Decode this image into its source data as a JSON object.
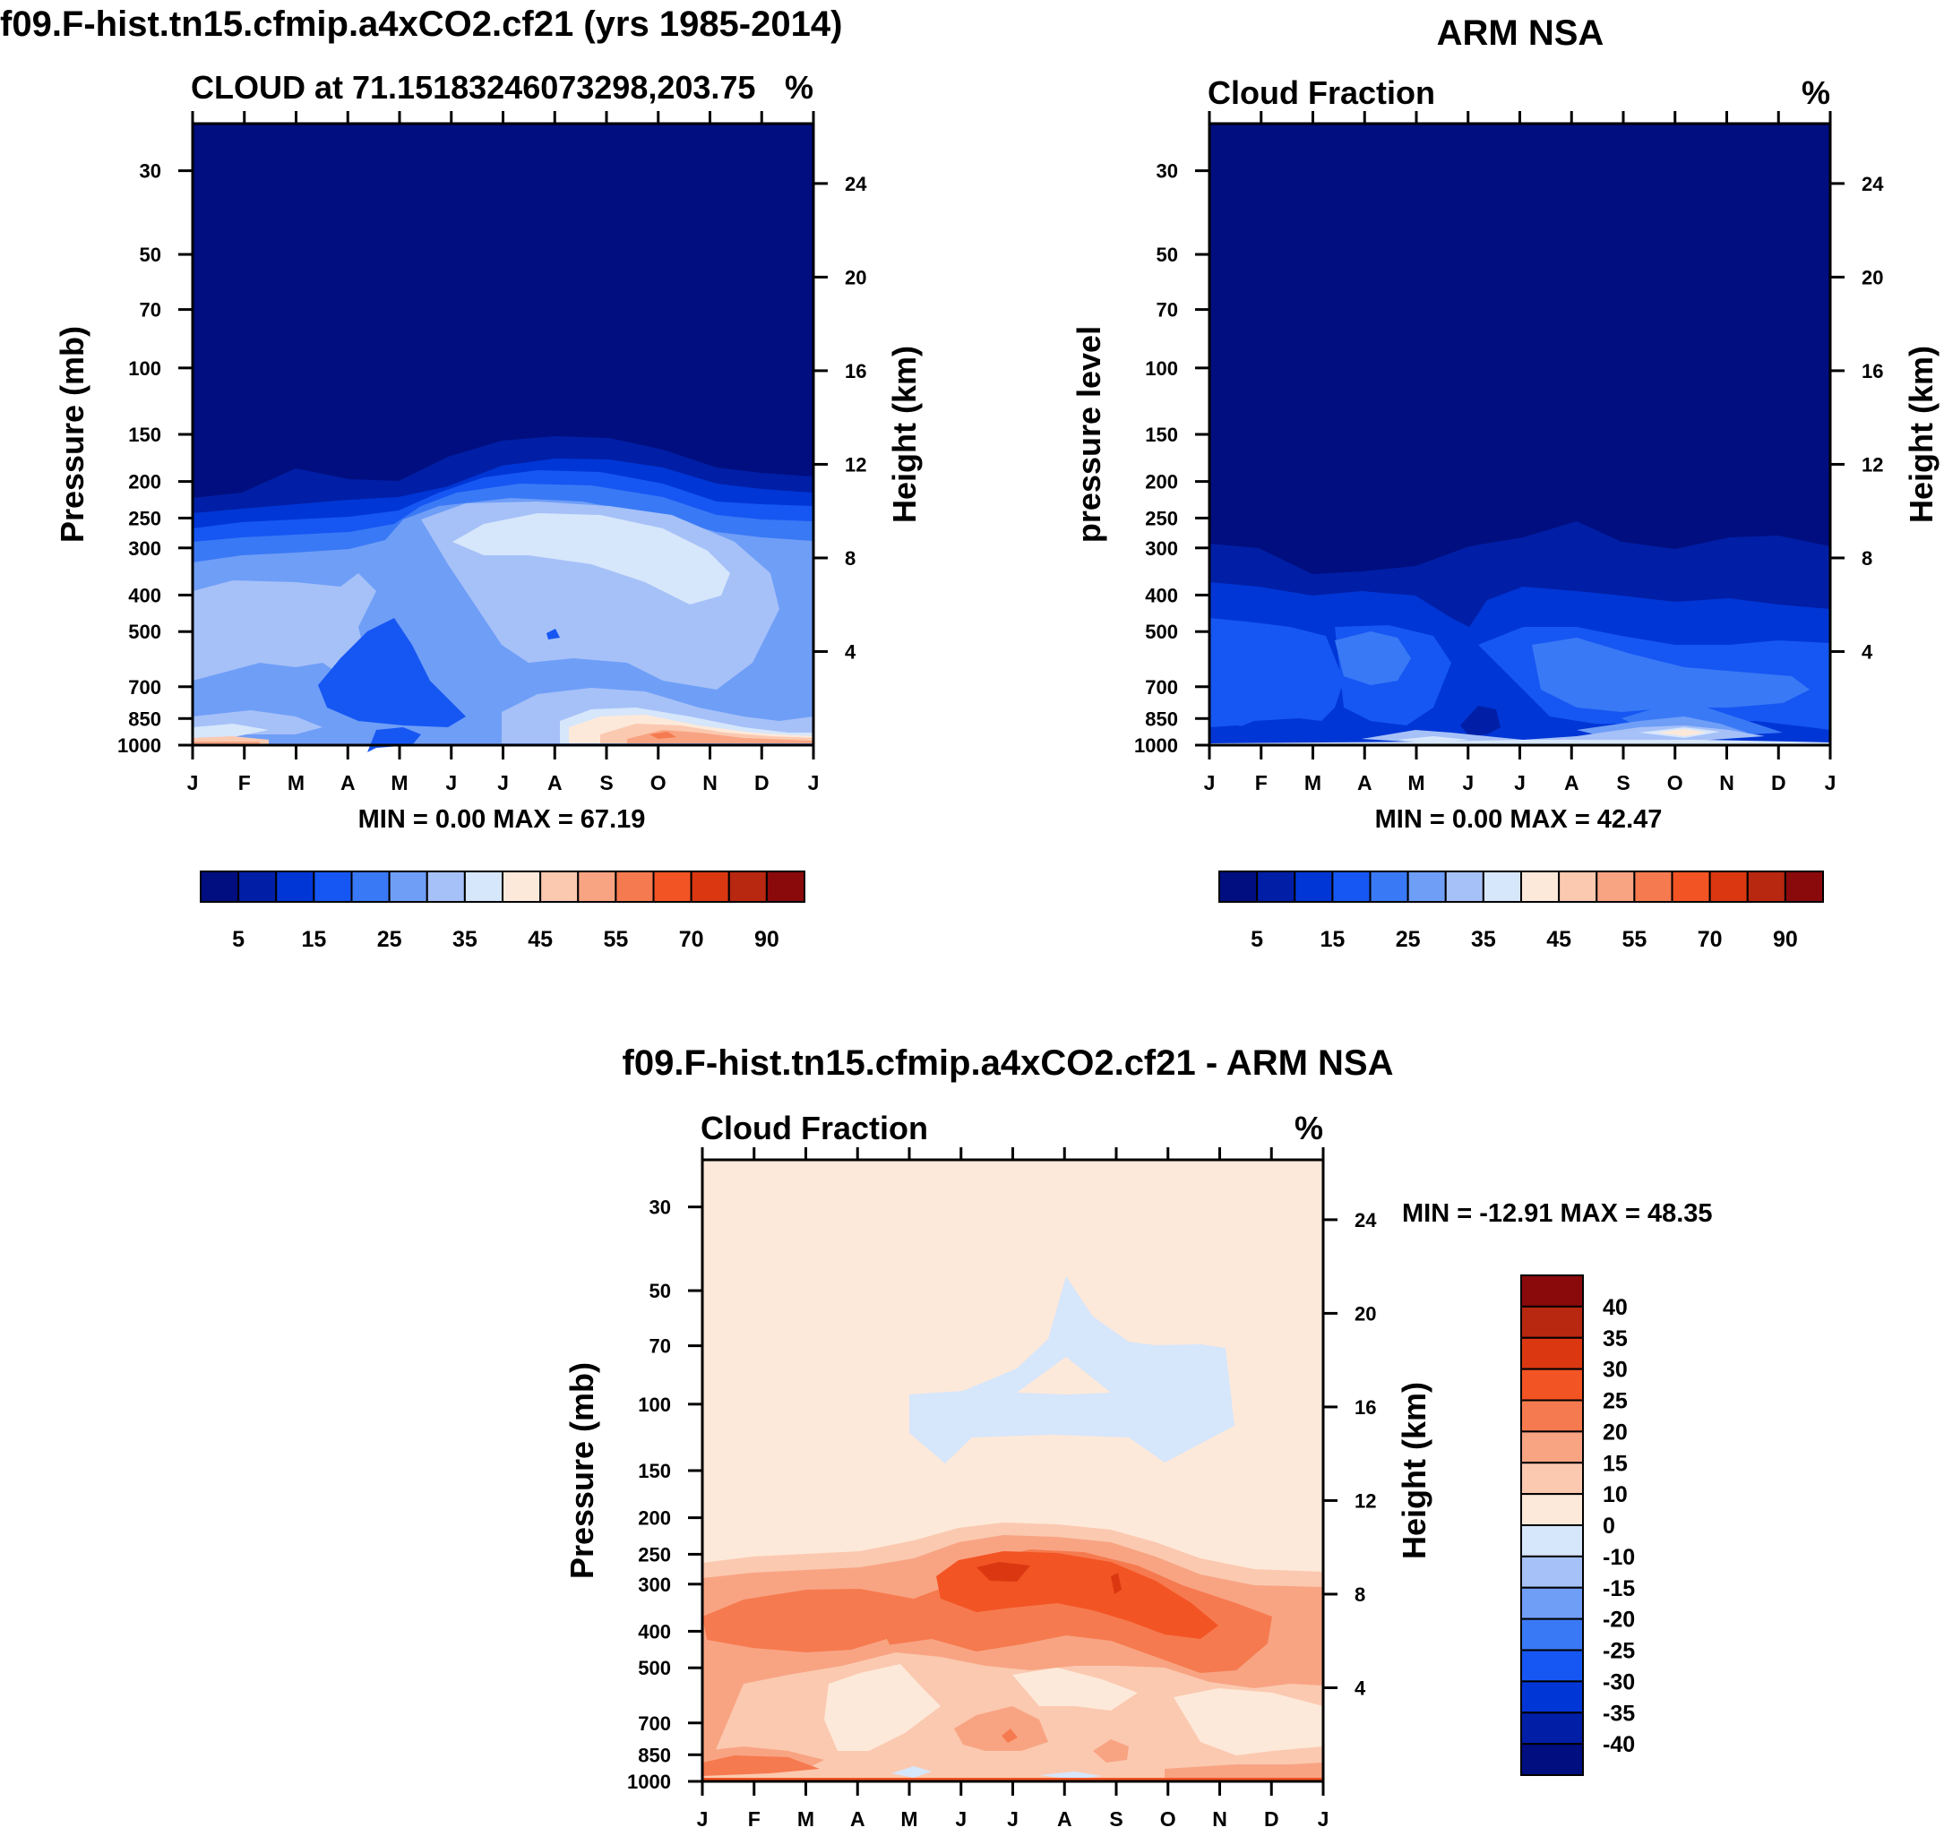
{
  "colors": {
    "cf_levels": [
      "#000e7f",
      "#001fa6",
      "#0036d6",
      "#1657f3",
      "#3a79f5",
      "#6f9ef7",
      "#a6c1f8",
      "#d6e6fb",
      "#fde9da",
      "#fbc9b0",
      "#f8a483",
      "#f67a4f",
      "#f35424",
      "#db3811",
      "#b82710",
      "#8a0a0c"
    ],
    "diff_levels": [
      "#000e7f",
      "#001fa6",
      "#0036d6",
      "#1657f3",
      "#3a79f5",
      "#6f9ef7",
      "#a6c1f8",
      "#d6e6fb",
      "#fde9da",
      "#fbc9b0",
      "#f8a483",
      "#f67a4f",
      "#f35424",
      "#db3811",
      "#b82710",
      "#8a0a0c"
    ]
  },
  "chart_data": [
    {
      "id": "model",
      "type": "contour",
      "figure_title": "f09.F-hist.tn15.cfmip.a4xCO2.cf21 (yrs 1985-2014)",
      "left_label": "CLOUD at 71.15183246073298,203.75",
      "right_label": "%",
      "ylabel": "Pressure (mb)",
      "y2label": "Height (km)",
      "x_ticks": [
        "J",
        "F",
        "M",
        "A",
        "M",
        "J",
        "J",
        "A",
        "S",
        "O",
        "N",
        "D",
        "J"
      ],
      "pressure_ticks": [
        "30",
        "50",
        "70",
        "100",
        "150",
        "200",
        "250",
        "300",
        "400",
        "500",
        "700",
        "850",
        "1000"
      ],
      "height_ticks": [
        "24",
        "20",
        "16",
        "12",
        "8",
        "4"
      ],
      "min_max": "MIN =    0.00 MAX =  67.19",
      "min": 0.0,
      "max": 67.19,
      "colorbar_labels": [
        "5",
        "15",
        "25",
        "35",
        "45",
        "55",
        "70",
        "90"
      ],
      "cloud_top_pressure_mb": [
        230,
        225,
        200,
        230,
        232,
        212,
        203,
        202,
        205,
        222,
        230,
        237,
        240
      ],
      "max_cloud_pressure_mb": [
        310,
        300,
        305,
        380,
        330,
        300,
        290,
        290,
        300,
        320,
        330,
        340,
        345
      ]
    },
    {
      "id": "obs",
      "type": "contour",
      "figure_title": "ARM NSA",
      "left_label": "Cloud Fraction",
      "right_label": "%",
      "ylabel": "pressure level",
      "y2label": "Height (km)",
      "x_ticks": [
        "J",
        "F",
        "M",
        "A",
        "M",
        "J",
        "J",
        "A",
        "S",
        "O",
        "N",
        "D",
        "J"
      ],
      "pressure_ticks": [
        "30",
        "50",
        "70",
        "100",
        "150",
        "200",
        "250",
        "300",
        "400",
        "500",
        "700",
        "850",
        "1000"
      ],
      "height_ticks": [
        "24",
        "20",
        "16",
        "12",
        "8",
        "4"
      ],
      "min_max": "MIN =    0.00 MAX =  42.47",
      "min": 0.0,
      "max": 42.47,
      "colorbar_labels": [
        "5",
        "15",
        "25",
        "35",
        "45",
        "55",
        "70",
        "90"
      ],
      "cloud_top_pressure_mb": [
        300,
        320,
        360,
        340,
        310,
        290,
        310,
        280,
        270,
        290,
        300,
        280,
        300
      ]
    },
    {
      "id": "diff",
      "type": "contour",
      "figure_title": "f09.F-hist.tn15.cfmip.a4xCO2.cf21 - ARM NSA",
      "left_label": "Cloud Fraction",
      "right_label": "%",
      "ylabel": "Pressure (mb)",
      "y2label": "Height (km)",
      "x_ticks": [
        "J",
        "F",
        "M",
        "A",
        "M",
        "J",
        "J",
        "A",
        "S",
        "O",
        "N",
        "D",
        "J"
      ],
      "pressure_ticks": [
        "30",
        "50",
        "70",
        "100",
        "150",
        "200",
        "250",
        "300",
        "400",
        "500",
        "700",
        "850",
        "1000"
      ],
      "height_ticks": [
        "24",
        "20",
        "16",
        "12",
        "8",
        "4"
      ],
      "min_max": "MIN = -12.91 MAX =  48.35",
      "min": -12.91,
      "max": 48.35,
      "colorbar_labels": [
        "40",
        "35",
        "30",
        "25",
        "20",
        "15",
        "10",
        "0",
        "-10",
        "-15",
        "-20",
        "-25",
        "-30",
        "-35",
        "-40"
      ]
    }
  ]
}
